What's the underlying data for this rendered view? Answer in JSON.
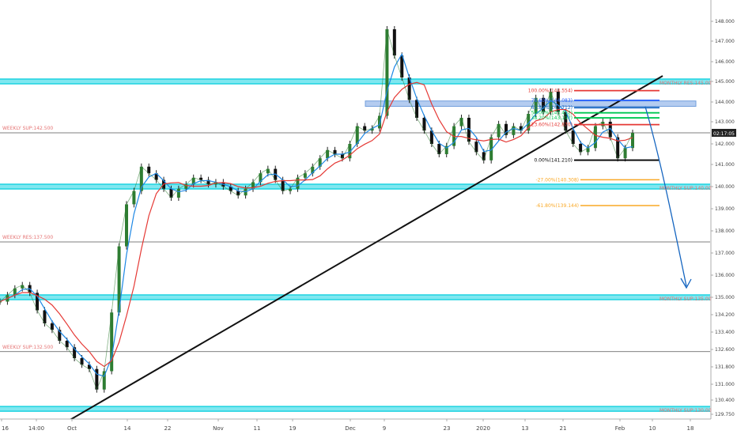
{
  "chart_data": {
    "type": "line",
    "title": "",
    "xlabel": "",
    "ylabel": "",
    "ylim": [
      129.55,
      148.7
    ],
    "grid": false,
    "x_tick_labels": [
      "16",
      "14:00",
      "Oct",
      "14",
      "22",
      "Nov",
      "11",
      "19",
      "Dec",
      "9",
      "23",
      "2020",
      "13",
      "21",
      "Feb",
      "10",
      "18"
    ],
    "y_ticks": [
      {
        "value": 148.0,
        "label": "148.000"
      },
      {
        "value": 147.0,
        "label": "147.000"
      },
      {
        "value": 146.0,
        "label": "146.000"
      },
      {
        "value": 145.0,
        "label": "145.000"
      },
      {
        "value": 144.0,
        "label": "144.000"
      },
      {
        "value": 143.0,
        "label": "143.000"
      },
      {
        "value": 142.0,
        "label": "142.000"
      },
      {
        "value": 141.0,
        "label": "141.000"
      },
      {
        "value": 140.0,
        "label": "140.000"
      },
      {
        "value": 139.0,
        "label": "139.000"
      },
      {
        "value": 138.0,
        "label": "138.000"
      },
      {
        "value": 137.0,
        "label": "137.000"
      },
      {
        "value": 136.0,
        "label": "136.000"
      },
      {
        "value": 135.0,
        "label": "135.000"
      },
      {
        "value": 134.2,
        "label": "134.200"
      },
      {
        "value": 133.4,
        "label": "133.400"
      },
      {
        "value": 132.6,
        "label": "132.600"
      },
      {
        "value": 131.8,
        "label": "131.800"
      },
      {
        "value": 131.0,
        "label": "131.000"
      },
      {
        "value": 130.4,
        "label": "130.400"
      },
      {
        "value": 129.75,
        "label": "129.750"
      }
    ],
    "current_price_label": "02:17:05",
    "current_price": 142.5,
    "horizontal_levels": [
      {
        "label": "MONTHLY RES:145.00",
        "value": 145.0,
        "kind": "monthly"
      },
      {
        "label": "WEEKLY SUP:142.500",
        "value": 142.5,
        "kind": "weekly"
      },
      {
        "label": "MONTHLY SUP:140.00",
        "value": 140.0,
        "kind": "monthly"
      },
      {
        "label": "WEEKLY RES:137.500",
        "value": 137.5,
        "kind": "weekly"
      },
      {
        "label": "MONTHLY SUP:135.00",
        "value": 135.0,
        "kind": "monthly"
      },
      {
        "label": "WEEKLY SUP:132.500",
        "value": 132.5,
        "kind": "weekly"
      },
      {
        "label": "MONTHLY SUP:130.00",
        "value": 130.0,
        "kind": "monthly"
      }
    ],
    "fib_levels": [
      {
        "label": "100.00%(144.554)",
        "value": 144.554,
        "color": "#e53935"
      },
      {
        "label": "78.60%(144.083)",
        "value": 144.083,
        "color": "#2962ff"
      },
      {
        "label": "61.80%(143.712)",
        "value": 143.712,
        "color": "#1565c0"
      },
      {
        "label": "50.00%(143.452)",
        "value": 143.452,
        "color": "#00c853"
      },
      {
        "label": "38.20%(143.197)",
        "value": 143.197,
        "color": "#00c853"
      },
      {
        "label": "23.60%(142.870)",
        "value": 142.87,
        "color": "#e53935"
      },
      {
        "label": "0.00%(141.210)",
        "value": 141.21,
        "color": "#000000"
      },
      {
        "label": "-27.00%(140.308)",
        "value": 140.308,
        "color": "#f9a825"
      },
      {
        "label": "-61.80%(139.144)",
        "value": 139.144,
        "color": "#f9a825"
      }
    ],
    "price_series": [
      {
        "x": 0,
        "y": 134.8
      },
      {
        "x": 1,
        "y": 135.1
      },
      {
        "x": 2,
        "y": 135.4
      },
      {
        "x": 3,
        "y": 135.55
      },
      {
        "x": 4,
        "y": 135.2
      },
      {
        "x": 5,
        "y": 134.4
      },
      {
        "x": 6,
        "y": 133.8
      },
      {
        "x": 7,
        "y": 133.5
      },
      {
        "x": 8,
        "y": 133.0
      },
      {
        "x": 9,
        "y": 132.7
      },
      {
        "x": 10,
        "y": 132.2
      },
      {
        "x": 11,
        "y": 131.9
      },
      {
        "x": 12,
        "y": 131.7
      },
      {
        "x": 13,
        "y": 130.8
      },
      {
        "x": 14,
        "y": 131.6
      },
      {
        "x": 15,
        "y": 134.3
      },
      {
        "x": 16,
        "y": 137.3
      },
      {
        "x": 17,
        "y": 139.2
      },
      {
        "x": 18,
        "y": 139.8
      },
      {
        "x": 19,
        "y": 140.9
      },
      {
        "x": 20,
        "y": 140.6
      },
      {
        "x": 21,
        "y": 140.3
      },
      {
        "x": 22,
        "y": 139.9
      },
      {
        "x": 23,
        "y": 139.5
      },
      {
        "x": 24,
        "y": 139.9
      },
      {
        "x": 25,
        "y": 140.1
      },
      {
        "x": 26,
        "y": 140.4
      },
      {
        "x": 27,
        "y": 140.3
      },
      {
        "x": 28,
        "y": 140.1
      },
      {
        "x": 29,
        "y": 140.2
      },
      {
        "x": 30,
        "y": 140.0
      },
      {
        "x": 31,
        "y": 139.8
      },
      {
        "x": 32,
        "y": 139.6
      },
      {
        "x": 33,
        "y": 139.9
      },
      {
        "x": 34,
        "y": 140.2
      },
      {
        "x": 35,
        "y": 140.6
      },
      {
        "x": 36,
        "y": 140.8
      },
      {
        "x": 37,
        "y": 140.3
      },
      {
        "x": 38,
        "y": 139.8
      },
      {
        "x": 39,
        "y": 139.9
      },
      {
        "x": 40,
        "y": 140.4
      },
      {
        "x": 41,
        "y": 140.6
      },
      {
        "x": 42,
        "y": 140.9
      },
      {
        "x": 43,
        "y": 141.3
      },
      {
        "x": 44,
        "y": 141.7
      },
      {
        "x": 45,
        "y": 141.5
      },
      {
        "x": 46,
        "y": 141.3
      },
      {
        "x": 47,
        "y": 142.0
      },
      {
        "x": 48,
        "y": 142.8
      },
      {
        "x": 49,
        "y": 142.6
      },
      {
        "x": 50,
        "y": 142.7
      },
      {
        "x": 51,
        "y": 143.3
      },
      {
        "x": 52,
        "y": 147.6
      },
      {
        "x": 53,
        "y": 146.3
      },
      {
        "x": 54,
        "y": 145.2
      },
      {
        "x": 55,
        "y": 144.1
      },
      {
        "x": 56,
        "y": 143.2
      },
      {
        "x": 57,
        "y": 142.6
      },
      {
        "x": 58,
        "y": 142.0
      },
      {
        "x": 59,
        "y": 141.5
      },
      {
        "x": 60,
        "y": 141.9
      },
      {
        "x": 61,
        "y": 142.8
      },
      {
        "x": 62,
        "y": 143.2
      },
      {
        "x": 63,
        "y": 142.1
      },
      {
        "x": 64,
        "y": 141.6
      },
      {
        "x": 65,
        "y": 141.2
      },
      {
        "x": 66,
        "y": 142.3
      },
      {
        "x": 67,
        "y": 142.9
      },
      {
        "x": 68,
        "y": 142.4
      },
      {
        "x": 69,
        "y": 142.8
      },
      {
        "x": 70,
        "y": 142.6
      },
      {
        "x": 71,
        "y": 143.4
      },
      {
        "x": 72,
        "y": 144.2
      },
      {
        "x": 73,
        "y": 143.5
      },
      {
        "x": 74,
        "y": 144.5
      },
      {
        "x": 75,
        "y": 143.5
      },
      {
        "x": 76,
        "y": 142.6
      },
      {
        "x": 77,
        "y": 142.0
      },
      {
        "x": 78,
        "y": 141.6
      },
      {
        "x": 79,
        "y": 141.8
      },
      {
        "x": 80,
        "y": 142.8
      },
      {
        "x": 81,
        "y": 143.0
      },
      {
        "x": 82,
        "y": 142.3
      },
      {
        "x": 83,
        "y": 141.3
      },
      {
        "x": 84,
        "y": 141.8
      },
      {
        "x": 85,
        "y": 142.5
      }
    ]
  }
}
